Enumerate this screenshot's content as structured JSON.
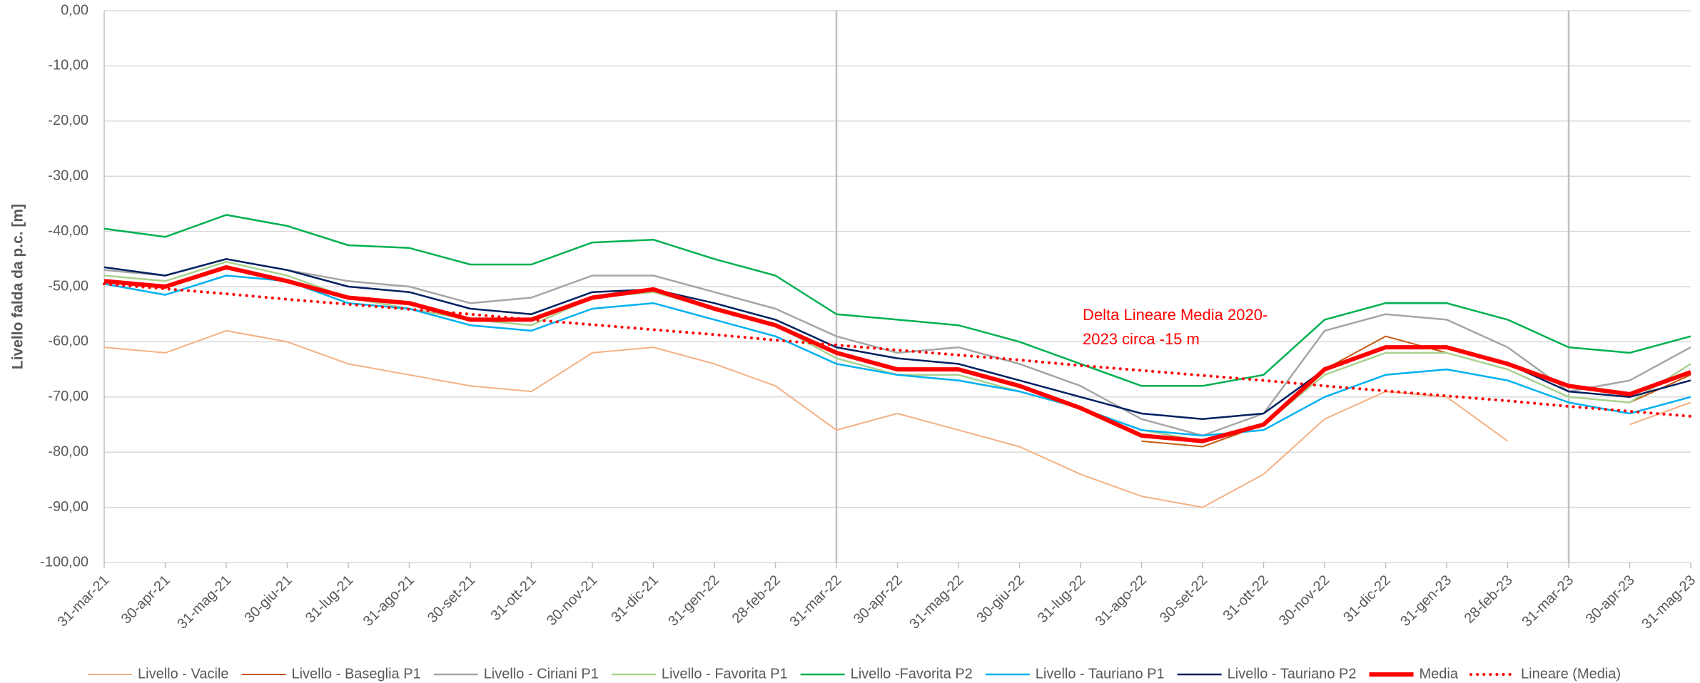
{
  "chart_data": {
    "type": "line",
    "y_label": "Livello falda da p.c. [m]",
    "categories": [
      "31-mar-21",
      "30-apr-21",
      "31-mag-21",
      "30-giu-21",
      "31-lug-21",
      "31-ago-21",
      "30-set-21",
      "31-ott-21",
      "30-nov-21",
      "31-dic-21",
      "31-gen-22",
      "28-feb-22",
      "31-mar-22",
      "30-apr-22",
      "31-mag-22",
      "30-giu-22",
      "31-lug-22",
      "31-ago-22",
      "30-set-22",
      "31-ott-22",
      "30-nov-22",
      "31-dic-22",
      "31-gen-23",
      "28-feb-23",
      "31-mar-23",
      "30-apr-23",
      "31-mag-23"
    ],
    "ylim": [
      -100,
      0
    ],
    "yticks": [
      {
        "value": 0,
        "label": "0,00"
      },
      {
        "value": -10,
        "label": "-10,00"
      },
      {
        "value": -20,
        "label": "-20,00"
      },
      {
        "value": -30,
        "label": "-30,00"
      },
      {
        "value": -40,
        "label": "-40,00"
      },
      {
        "value": -50,
        "label": "-50,00"
      },
      {
        "value": -60,
        "label": "-60,00"
      },
      {
        "value": -70,
        "label": "-70,00"
      },
      {
        "value": -80,
        "label": "-80,00"
      },
      {
        "value": -90,
        "label": "-90,00"
      },
      {
        "value": -100,
        "label": "-100,00"
      }
    ],
    "grid": true,
    "vertical_lines_at": [
      "31-mar-22",
      "31-mar-23"
    ],
    "legend": "bottom",
    "annotation": {
      "lines": [
        "Delta Lineare Media 2020-",
        "2023 circa -15 m"
      ],
      "color": "#ff0000"
    },
    "series": [
      {
        "name": "Livello - Vacile",
        "color": "#f4b183",
        "width": 2,
        "values": [
          -61,
          -62,
          -58,
          -60,
          -64,
          -66,
          -68,
          -69,
          -62,
          -61,
          -64,
          -68,
          -76,
          -73,
          -76,
          -79,
          -84,
          -88,
          -90,
          -84,
          -74,
          -69,
          -70,
          -78,
          null,
          -75,
          -71
        ]
      },
      {
        "name": "Livello - Baseglia P1",
        "color": "#c55a11",
        "width": 2,
        "values": [
          null,
          null,
          null,
          null,
          null,
          null,
          null,
          null,
          null,
          null,
          null,
          null,
          null,
          null,
          null,
          null,
          null,
          -78,
          -79,
          -75,
          -65,
          -59,
          -62,
          null,
          null,
          -71,
          -66
        ]
      },
      {
        "name": "Livello - Ciriani P1",
        "color": "#a5a5a5",
        "width": 2.5,
        "values": [
          -47,
          -48,
          -45,
          -47,
          -49,
          -50,
          -53,
          -52,
          -48,
          -48,
          -51,
          -54,
          -59,
          -62,
          -61,
          -64,
          -68,
          -74,
          -77,
          -73,
          -58,
          -55,
          -56,
          -61,
          -69,
          -67,
          -61
        ]
      },
      {
        "name": "Livello - Favorita P1",
        "color": "#a9d18e",
        "width": 2.5,
        "values": [
          -48,
          -49,
          -45.5,
          -48,
          -52,
          -54,
          -56,
          -57,
          -52,
          -51,
          -54,
          -57,
          -63,
          -66,
          -66,
          -69,
          -72,
          -76,
          -78,
          -75,
          -66,
          -62,
          -62,
          -65,
          -70,
          -71,
          -64
        ]
      },
      {
        "name": "Livello -Favorita P2",
        "color": "#00b050",
        "width": 2.5,
        "values": [
          -39.5,
          -41,
          -37,
          -39,
          -42.5,
          -43,
          -46,
          -46,
          -42,
          -41.5,
          -45,
          -48,
          -55,
          -56,
          -57,
          -60,
          -64,
          -68,
          -68,
          -66,
          -56,
          -53,
          -53,
          -56,
          -61,
          -62,
          -59
        ]
      },
      {
        "name": "Livello - Tauriano P1",
        "color": "#00b0f0",
        "width": 2.5,
        "values": [
          -49.5,
          -51.5,
          -48,
          -49,
          -53,
          -54,
          -57,
          -58,
          -54,
          -53,
          -56,
          -59,
          -64,
          -66,
          -67,
          -69,
          -72,
          -76,
          -77,
          -76,
          -70,
          -66,
          -65,
          -67,
          -71,
          -73,
          -70
        ]
      },
      {
        "name": "Livello - Tauriano P2",
        "color": "#002060",
        "width": 2.5,
        "values": [
          -46.5,
          -48,
          -45,
          -47,
          -50,
          -51,
          -54,
          -55,
          -51,
          -50.5,
          -53,
          -56,
          -61,
          -63,
          -64,
          -67,
          -70,
          -73,
          -74,
          -73,
          -65,
          -61,
          -61,
          -64,
          -69,
          -70,
          -67
        ]
      },
      {
        "name": "Media",
        "color": "#ff0000",
        "width": 6,
        "values": [
          -49,
          -50,
          -46.5,
          -49,
          -52,
          -53,
          -56,
          -56,
          -52,
          -50.5,
          -54,
          -57,
          -62,
          -65,
          -65,
          -68,
          -72,
          -77,
          -78,
          -75,
          -65,
          -61,
          -61,
          -64,
          -68,
          -69.5,
          -65.5
        ]
      },
      {
        "name": "Lineare (Media)",
        "color": "#ff0000",
        "width": 4,
        "dash": "dotted",
        "values": [
          -49.5,
          -50.4,
          -51.3,
          -52.3,
          -53.2,
          -54.1,
          -55.0,
          -56.0,
          -56.9,
          -57.8,
          -58.7,
          -59.7,
          -60.6,
          -61.5,
          -62.4,
          -63.3,
          -64.3,
          -65.2,
          -66.1,
          -67.0,
          -68.0,
          -68.9,
          -69.8,
          -70.7,
          -71.7,
          -72.6,
          -73.5
        ]
      }
    ]
  }
}
